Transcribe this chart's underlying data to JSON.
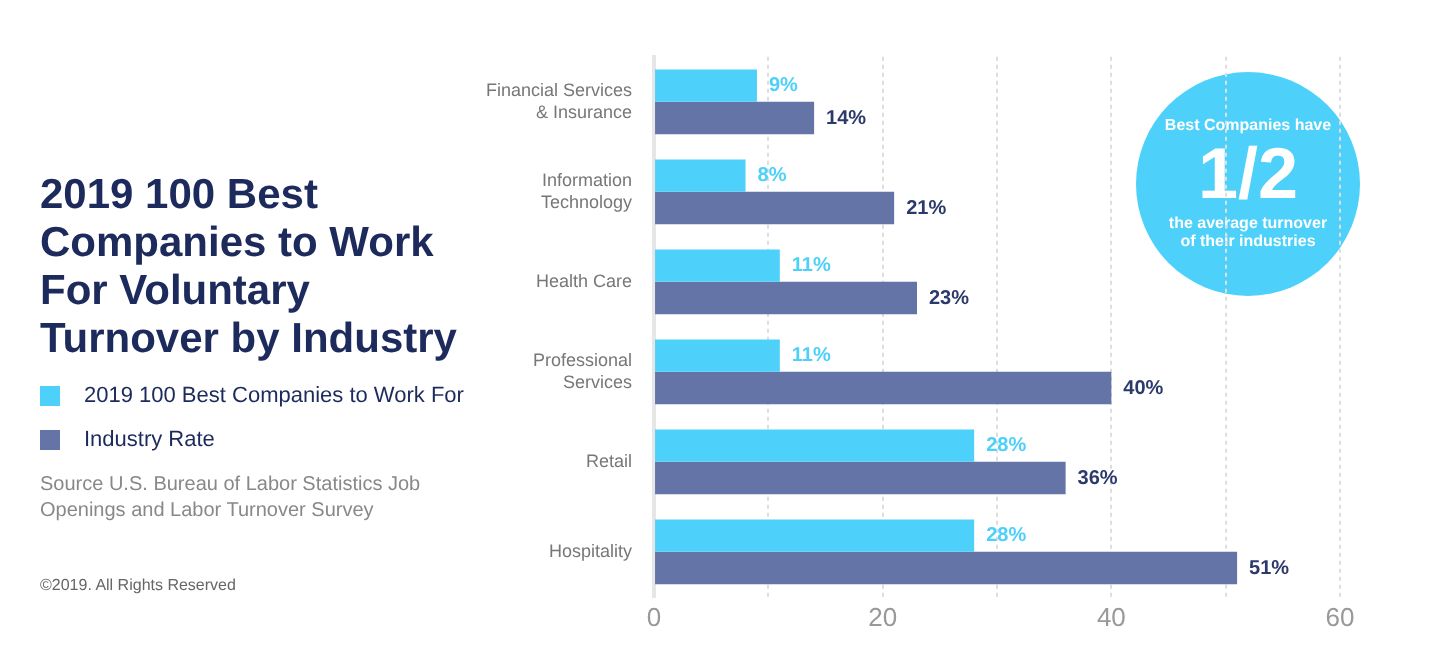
{
  "chart_data": {
    "type": "bar",
    "orientation": "horizontal",
    "title": "2019 100 Best Companies to Work For Voluntary Turnover by Industry",
    "categories": [
      "Financial Services\n& Insurance",
      "Information\nTechnology",
      "Health Care",
      "Professional\nServices",
      "Retail",
      "Hospitality"
    ],
    "series": [
      {
        "name": "2019 100 Best Companies to Work For",
        "color": "#4dd0fa",
        "values": [
          9,
          8,
          11,
          11,
          28,
          28
        ],
        "value_labels": [
          "9%",
          "8%",
          "11%",
          "11%",
          "28%",
          "28%"
        ]
      },
      {
        "name": "Industry Rate",
        "color": "#6574a6",
        "values": [
          14,
          21,
          23,
          40,
          36,
          51
        ],
        "value_labels": [
          "14%",
          "21%",
          "23%",
          "40%",
          "36%",
          "51%"
        ]
      }
    ],
    "xlim": [
      0,
      60
    ],
    "xticks": [
      0,
      {
        "value": 10,
        "label": null
      },
      20,
      {
        "value": 30,
        "label": null
      },
      40,
      {
        "value": 50,
        "label": null
      },
      60
    ],
    "grid": "x",
    "legend": "left",
    "annotations": [
      "Best Companies have",
      "1/2",
      "the average turnover of their industries",
      "Source U.S. Bureau of Labor Statistics Job Openings and Labor Turnover Survey",
      "©2019. All Rights Reserved"
    ]
  }
}
